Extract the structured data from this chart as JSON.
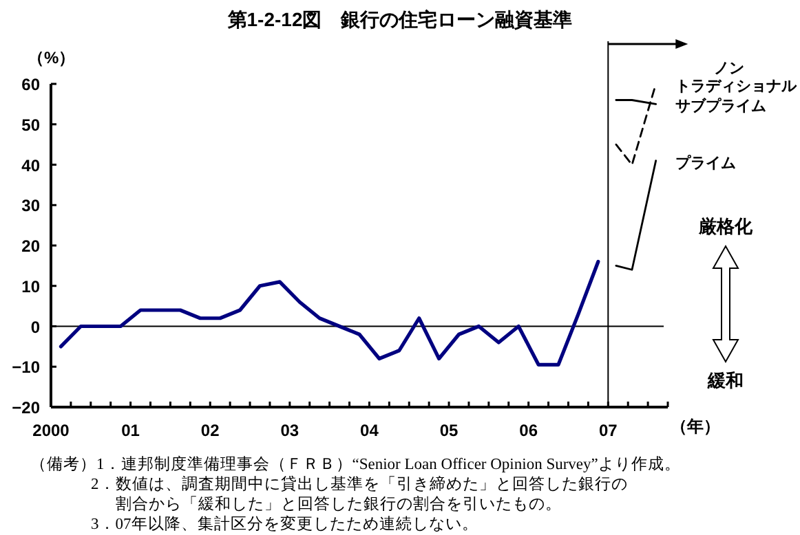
{
  "chart_data": {
    "type": "line",
    "title": "第1-2-12図　銀行の住宅ローン融資基準",
    "xlabel": "（年）",
    "ylabel": "（%）",
    "xlim": [
      2000,
      2007.75
    ],
    "xticks": [
      {
        "value": 2000,
        "label": "2000"
      },
      {
        "value": 2000.25,
        "label": null
      },
      {
        "value": 2000.5,
        "label": null
      },
      {
        "value": 2000.75,
        "label": null
      },
      {
        "value": 2001,
        "label": "01"
      },
      {
        "value": 2001.25,
        "label": null
      },
      {
        "value": 2001.5,
        "label": null
      },
      {
        "value": 2001.75,
        "label": null
      },
      {
        "value": 2002,
        "label": "02"
      },
      {
        "value": 2002.25,
        "label": null
      },
      {
        "value": 2002.5,
        "label": null
      },
      {
        "value": 2002.75,
        "label": null
      },
      {
        "value": 2003,
        "label": "03"
      },
      {
        "value": 2003.25,
        "label": null
      },
      {
        "value": 2003.5,
        "label": null
      },
      {
        "value": 2003.75,
        "label": null
      },
      {
        "value": 2004,
        "label": "04"
      },
      {
        "value": 2004.25,
        "label": null
      },
      {
        "value": 2004.5,
        "label": null
      },
      {
        "value": 2004.75,
        "label": null
      },
      {
        "value": 2005,
        "label": "05"
      },
      {
        "value": 2005.25,
        "label": null
      },
      {
        "value": 2005.5,
        "label": null
      },
      {
        "value": 2005.75,
        "label": null
      },
      {
        "value": 2006,
        "label": "06"
      },
      {
        "value": 2006.25,
        "label": null
      },
      {
        "value": 2006.5,
        "label": null
      },
      {
        "value": 2006.75,
        "label": null
      },
      {
        "value": 2007,
        "label": "07"
      },
      {
        "value": 2007.25,
        "label": null
      },
      {
        "value": 2007.5,
        "label": null
      },
      {
        "value": 2007.75,
        "label": null
      }
    ],
    "ylim": [
      -20,
      60
    ],
    "yticks": [
      -20,
      -10,
      0,
      10,
      20,
      30,
      40,
      50,
      60
    ],
    "marker": "none",
    "series": [
      {
        "color": "#000080",
        "line_style": "solid",
        "x": [
          2000.125,
          2000.375,
          2000.625,
          2000.875,
          2001.125,
          2001.375,
          2001.625,
          2001.875,
          2002.125,
          2002.375,
          2002.625,
          2002.875,
          2003.125,
          2003.375,
          2003.625,
          2003.875,
          2004.125,
          2004.375,
          2004.625,
          2004.875,
          2005.125,
          2005.375,
          2005.625,
          2005.875,
          2006.125,
          2006.375,
          2006.625,
          2006.875
        ],
        "values": [
          -5,
          0,
          0,
          0,
          4,
          4,
          4,
          2,
          2,
          4,
          10,
          11,
          6,
          2,
          0,
          -2,
          -8,
          -6,
          2,
          -8,
          -2,
          0,
          -4,
          0,
          -9.5,
          -9.5,
          3,
          16
        ]
      },
      {
        "name": "ノントラディショナル",
        "color": "#000000",
        "line_style": "dashed",
        "x": [
          2007.1,
          2007.3,
          2007.6
        ],
        "values": [
          45,
          40,
          60
        ]
      },
      {
        "name": "サブプライム",
        "color": "#000000",
        "line_style": "solid",
        "x": [
          2007.1,
          2007.3,
          2007.6
        ],
        "values": [
          56,
          56,
          55
        ]
      },
      {
        "name": "プライム",
        "color": "#000000",
        "line_style": "solid",
        "x": [
          2007.1,
          2007.3,
          2007.6
        ],
        "values": [
          15,
          14,
          41
        ]
      }
    ],
    "ref_lines": [
      {
        "axis": "y",
        "value": 0,
        "color": "#000000"
      },
      {
        "axis": "x",
        "value": 2007,
        "color": "#000000"
      }
    ],
    "annotations": [
      "厳格化",
      "緩和",
      "（備考）1．連邦制度準備理事会（ＦＲＢ）“Senior Loan Officer Opinion Survey”より作成。",
      "2．数値は、調査期間中に貸出し基準を「引き締めた」と回答した銀行の",
      "割合から「緩和した」と回答した銀行の割合を引いたもの。",
      "3．07年以降、集計区分を変更したため連続しない。"
    ]
  }
}
